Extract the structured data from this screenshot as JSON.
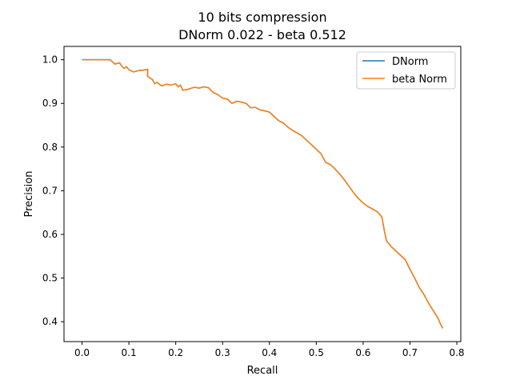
{
  "chart_data": {
    "type": "line",
    "title_line1": "10 bits compression",
    "title_line2": "DNorm 0.022 - beta 0.512",
    "xlabel": "Recall",
    "ylabel": "Precision",
    "xlim": [
      -0.0385,
      0.8085
    ],
    "ylim": [
      0.3545,
      1.0305
    ],
    "xticks": [
      0.0,
      0.1,
      0.2,
      0.3,
      0.4,
      0.5,
      0.6,
      0.7,
      0.8
    ],
    "xtick_labels": [
      "0.0",
      "0.1",
      "0.2",
      "0.3",
      "0.4",
      "0.5",
      "0.6",
      "0.7",
      "0.8"
    ],
    "yticks": [
      0.4,
      0.5,
      0.6,
      0.7,
      0.8,
      0.9,
      1.0
    ],
    "ytick_labels": [
      "0.4",
      "0.5",
      "0.6",
      "0.7",
      "0.8",
      "0.9",
      "1.0"
    ],
    "grid": false,
    "legend_position": "upper right",
    "series": [
      {
        "name": "DNorm",
        "color": "#1f77b4",
        "x": [
          0.0,
          0.005,
          0.03,
          0.06,
          0.07,
          0.08,
          0.085,
          0.09,
          0.095,
          0.1,
          0.11,
          0.12,
          0.13,
          0.14,
          0.14,
          0.145,
          0.15,
          0.155,
          0.16,
          0.17,
          0.18,
          0.19,
          0.2,
          0.205,
          0.21,
          0.215,
          0.225,
          0.24,
          0.25,
          0.26,
          0.27,
          0.275,
          0.28,
          0.29,
          0.3,
          0.31,
          0.32,
          0.33,
          0.34,
          0.35,
          0.36,
          0.37,
          0.38,
          0.39,
          0.4,
          0.41,
          0.42,
          0.43,
          0.44,
          0.45,
          0.46,
          0.47,
          0.48,
          0.49,
          0.5,
          0.51,
          0.52,
          0.53,
          0.54,
          0.55,
          0.56,
          0.57,
          0.58,
          0.59,
          0.6,
          0.61,
          0.62,
          0.63,
          0.64,
          0.645,
          0.65,
          0.66,
          0.67,
          0.68,
          0.69,
          0.7,
          0.71,
          0.72,
          0.73,
          0.74,
          0.75,
          0.76,
          0.765,
          0.77
        ],
        "y": [
          1.0,
          1.0,
          1.0,
          1.0,
          0.99,
          0.993,
          0.985,
          0.98,
          0.984,
          0.977,
          0.972,
          0.975,
          0.976,
          0.978,
          0.962,
          0.958,
          0.955,
          0.945,
          0.948,
          0.94,
          0.944,
          0.942,
          0.945,
          0.938,
          0.942,
          0.93,
          0.932,
          0.937,
          0.935,
          0.938,
          0.936,
          0.93,
          0.925,
          0.92,
          0.912,
          0.91,
          0.9,
          0.905,
          0.903,
          0.9,
          0.89,
          0.891,
          0.885,
          0.883,
          0.88,
          0.87,
          0.86,
          0.855,
          0.845,
          0.838,
          0.832,
          0.825,
          0.815,
          0.805,
          0.795,
          0.785,
          0.765,
          0.76,
          0.75,
          0.738,
          0.725,
          0.71,
          0.695,
          0.682,
          0.672,
          0.664,
          0.658,
          0.652,
          0.64,
          0.61,
          0.585,
          0.572,
          0.562,
          0.552,
          0.542,
          0.52,
          0.5,
          0.478,
          0.462,
          0.442,
          0.425,
          0.408,
          0.395,
          0.385
        ]
      },
      {
        "name": "beta Norm",
        "color": "#ff7f0e",
        "x": [
          0.0,
          0.005,
          0.03,
          0.06,
          0.07,
          0.08,
          0.085,
          0.09,
          0.095,
          0.1,
          0.11,
          0.12,
          0.13,
          0.14,
          0.14,
          0.145,
          0.15,
          0.155,
          0.16,
          0.17,
          0.18,
          0.19,
          0.2,
          0.205,
          0.21,
          0.215,
          0.225,
          0.24,
          0.25,
          0.26,
          0.27,
          0.275,
          0.28,
          0.29,
          0.3,
          0.31,
          0.32,
          0.33,
          0.34,
          0.35,
          0.36,
          0.37,
          0.38,
          0.39,
          0.4,
          0.41,
          0.42,
          0.43,
          0.44,
          0.45,
          0.46,
          0.47,
          0.48,
          0.49,
          0.5,
          0.51,
          0.52,
          0.53,
          0.54,
          0.55,
          0.56,
          0.57,
          0.58,
          0.59,
          0.6,
          0.61,
          0.62,
          0.63,
          0.64,
          0.645,
          0.65,
          0.66,
          0.67,
          0.68,
          0.69,
          0.7,
          0.71,
          0.72,
          0.73,
          0.74,
          0.75,
          0.76,
          0.765,
          0.77
        ],
        "y": [
          1.0,
          1.0,
          1.0,
          1.0,
          0.99,
          0.993,
          0.985,
          0.98,
          0.984,
          0.977,
          0.972,
          0.975,
          0.976,
          0.978,
          0.962,
          0.958,
          0.955,
          0.945,
          0.948,
          0.94,
          0.944,
          0.942,
          0.945,
          0.938,
          0.942,
          0.93,
          0.932,
          0.937,
          0.935,
          0.938,
          0.936,
          0.93,
          0.925,
          0.92,
          0.912,
          0.91,
          0.9,
          0.905,
          0.903,
          0.9,
          0.89,
          0.891,
          0.885,
          0.883,
          0.88,
          0.87,
          0.86,
          0.855,
          0.845,
          0.838,
          0.832,
          0.825,
          0.815,
          0.805,
          0.795,
          0.785,
          0.765,
          0.76,
          0.75,
          0.738,
          0.725,
          0.71,
          0.695,
          0.682,
          0.672,
          0.664,
          0.658,
          0.652,
          0.64,
          0.61,
          0.585,
          0.572,
          0.562,
          0.552,
          0.542,
          0.52,
          0.5,
          0.478,
          0.462,
          0.442,
          0.425,
          0.408,
          0.395,
          0.385
        ]
      }
    ]
  }
}
